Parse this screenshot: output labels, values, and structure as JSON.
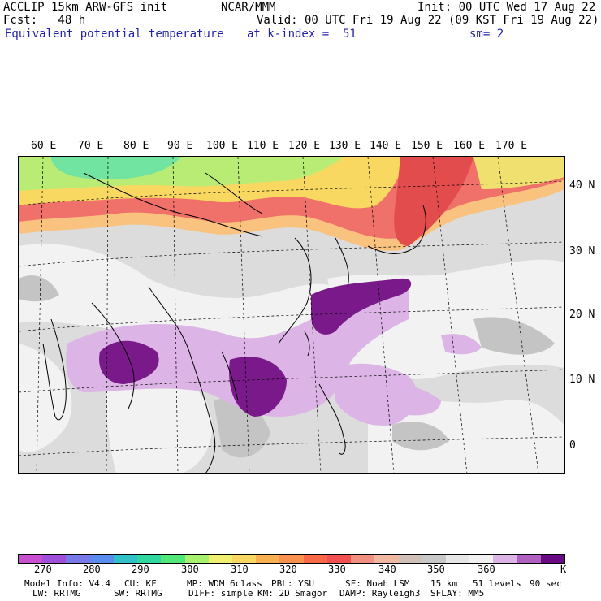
{
  "header": {
    "model": "ACCLIP 15km ARW-GFS init",
    "center": "NCAR/MMM",
    "init": "Init: 00 UTC Wed 17 Aug 22",
    "fcst": "Fcst:   48 h",
    "valid": "Valid: 00 UTC Fri 19 Aug 22 (09 KST Fri 19 Aug 22)",
    "field": "Equivalent potential temperature",
    "level": "at k-index =  51",
    "smoothing": "sm= 2"
  },
  "map": {
    "lon_labels": [
      "60 E",
      "70 E",
      "80 E",
      "90 E",
      "100 E",
      "110 E",
      "120 E",
      "130 E",
      "140 E",
      "150 E",
      "160 E",
      "170 E"
    ],
    "lat_labels": [
      "40 N",
      "30 N",
      "20 N",
      "10 N",
      "0"
    ],
    "colors": {
      "ocean_base": "#dcdcdc",
      "warm_band": "#f07060",
      "purple_dark": "#7a1a8a",
      "purple_light": "#d8b4e2",
      "coast": "#000000",
      "grid": "#000000"
    }
  },
  "colorbar": {
    "unit": "K",
    "colors": [
      "#c84fd0",
      "#a050d8",
      "#7878e8",
      "#5a8cf0",
      "#30c0c8",
      "#30d8a0",
      "#50e878",
      "#a8f070",
      "#f0f070",
      "#f8d860",
      "#f8b050",
      "#f89050",
      "#f86848",
      "#f05050",
      "#f09080",
      "#f0b8a0",
      "#d0c0b8",
      "#c8c8c8",
      "#e6e6e6",
      "#f2f2f2",
      "#dcb4e6",
      "#b060c0",
      "#6a0a82"
    ],
    "labels": [
      "270",
      "280",
      "290",
      "300",
      "310",
      "320",
      "330",
      "340",
      "350",
      "360"
    ]
  },
  "footer": {
    "line1": {
      "model_info": "Model Info: V4.4",
      "cu": "CU: KF",
      "mp": "MP: WDM 6class",
      "pbl": "PBL: YSU",
      "sf": "SF: Noah LSM",
      "res": "15 km",
      "levels": "51 levels",
      "dt": "90 sec"
    },
    "line2": {
      "lw": "LW: RRTMG",
      "sw": "SW: RRTMG",
      "diff": "DIFF: simple",
      "km": "KM: 2D Smagor",
      "damp": "DAMP: Rayleigh3",
      "sflay": "SFLAY: MM5"
    }
  }
}
